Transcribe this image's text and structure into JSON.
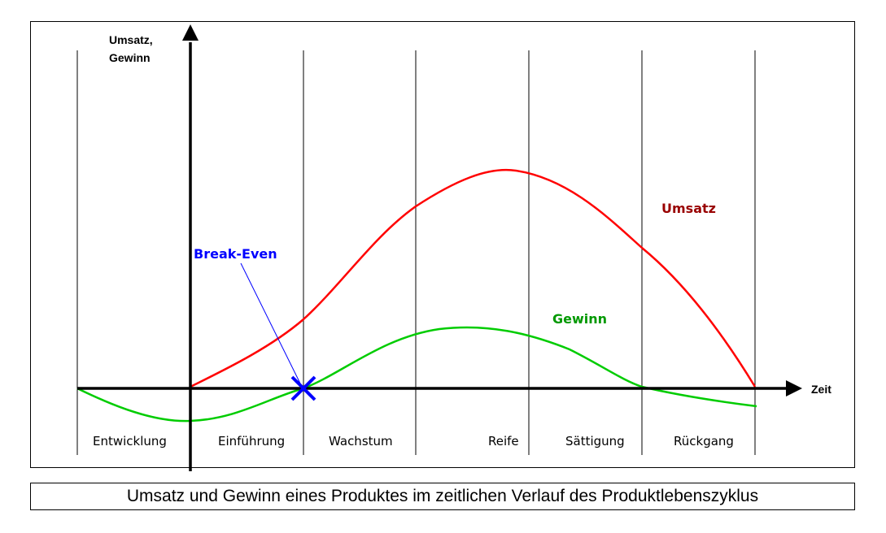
{
  "diagram": {
    "y_axis_label_line1": "Umsatz,",
    "y_axis_label_line2": "Gewinn",
    "x_axis_label": "Zeit",
    "phases": [
      "Entwicklung",
      "Einführung",
      "Wachstum",
      "Reife",
      "Sättigung",
      "Rückgang"
    ],
    "series": [
      {
        "name": "Umsatz",
        "color": "#ff0000",
        "label_color": "#990000"
      },
      {
        "name": "Gewinn",
        "color": "#00cc00",
        "label_color": "#009900"
      }
    ],
    "break_even": {
      "label": "Break-Even",
      "color": "#0000ff"
    }
  },
  "caption": "Umsatz und Gewinn eines Produktes im zeitlichen Verlauf des Produktlebenszyklus"
}
